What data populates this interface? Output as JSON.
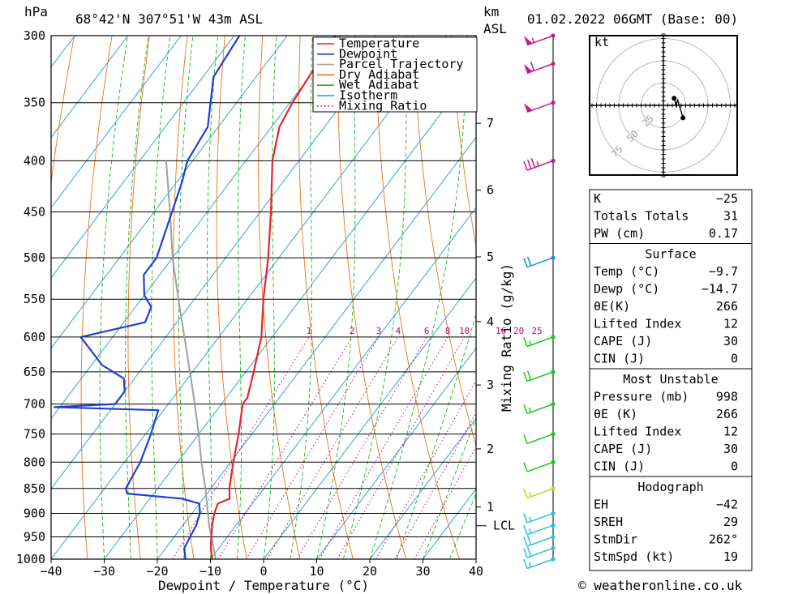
{
  "header": {
    "location": "68°42'N  307°51'W  43m  ASL",
    "datetime": "01.02.2022  06GMT  (Base: 00)",
    "hpa_label": "hPa",
    "km_label": "km",
    "asl_label": "ASL",
    "mixing_ratio_axis": "Mixing Ratio (g/kg)",
    "footer": "© weatheronline.co.uk"
  },
  "chart_data": {
    "type": "line",
    "xlabel": "Dewpoint / Temperature (°C)",
    "ylabel": "hPa",
    "x_ticks": [
      "−40",
      "−30",
      "−20",
      "−10",
      "0",
      "10",
      "20",
      "30",
      "40"
    ],
    "x_tick_values": [
      -40,
      -30,
      -20,
      -10,
      0,
      10,
      20,
      30,
      40
    ],
    "pressure_ticks": [
      300,
      350,
      400,
      450,
      500,
      550,
      600,
      650,
      700,
      750,
      800,
      850,
      900,
      950,
      1000
    ],
    "xlim": [
      -40,
      40
    ],
    "plim": [
      300,
      1000
    ],
    "skew": true,
    "km_ticks": [
      {
        "label": "7",
        "p": 367
      },
      {
        "label": "6",
        "p": 428
      },
      {
        "label": "5",
        "p": 499
      },
      {
        "label": "4",
        "p": 579
      },
      {
        "label": "3",
        "p": 670
      },
      {
        "label": "2",
        "p": 776
      },
      {
        "label": "1",
        "p": 887
      }
    ],
    "lcl": {
      "label": "LCL",
      "p": 926
    },
    "mixing_ratio_labels": [
      "1",
      "2",
      "3",
      "4",
      "6",
      "8",
      "10",
      "16",
      "20",
      "25"
    ],
    "mixing_ratio_values": [
      1,
      2,
      3,
      4,
      6,
      8,
      10,
      16,
      20,
      25
    ],
    "legend": {
      "position": "top-right",
      "entries": [
        {
          "name": "Temperature",
          "color": "#e8242c"
        },
        {
          "name": "Dewpoint",
          "color": "#1f3fd6"
        },
        {
          "name": "Parcel Trajectory",
          "color": "#a0a0a0"
        },
        {
          "name": "Dry Adiabat",
          "color": "#e8731a"
        },
        {
          "name": "Wet Adiabat",
          "color": "#18b818"
        },
        {
          "name": "Isotherm",
          "color": "#1a9ad6"
        },
        {
          "name": "Mixing Ratio",
          "color": "#c0007a"
        }
      ]
    },
    "series": [
      {
        "name": "Temperature",
        "color": "#e8242c",
        "points": [
          {
            "p": 1000,
            "t": -9.7
          },
          {
            "p": 975,
            "t": -11.5
          },
          {
            "p": 950,
            "t": -13.0
          },
          {
            "p": 925,
            "t": -14.5
          },
          {
            "p": 900,
            "t": -15.8
          },
          {
            "p": 880,
            "t": -16.5
          },
          {
            "p": 870,
            "t": -15.0
          },
          {
            "p": 850,
            "t": -16.5
          },
          {
            "p": 800,
            "t": -19.5
          },
          {
            "p": 750,
            "t": -22.5
          },
          {
            "p": 700,
            "t": -26.0
          },
          {
            "p": 690,
            "t": -26.0
          },
          {
            "p": 650,
            "t": -28.5
          },
          {
            "p": 600,
            "t": -32.0
          },
          {
            "p": 550,
            "t": -37.0
          },
          {
            "p": 500,
            "t": -42.0
          },
          {
            "p": 450,
            "t": -48.0
          },
          {
            "p": 400,
            "t": -55.0
          },
          {
            "p": 370,
            "t": -58.5
          },
          {
            "p": 350,
            "t": -59.5
          },
          {
            "p": 300,
            "t": -61.0
          }
        ]
      },
      {
        "name": "Dewpoint",
        "color": "#1f3fd6",
        "points": [
          {
            "p": 1000,
            "t": -14.7
          },
          {
            "p": 975,
            "t": -16.5
          },
          {
            "p": 950,
            "t": -17.0
          },
          {
            "p": 925,
            "t": -17.5
          },
          {
            "p": 900,
            "t": -18.5
          },
          {
            "p": 880,
            "t": -20.0
          },
          {
            "p": 870,
            "t": -24.0
          },
          {
            "p": 860,
            "t": -35.0
          },
          {
            "p": 850,
            "t": -36.0
          },
          {
            "p": 800,
            "t": -37.0
          },
          {
            "p": 750,
            "t": -39.0
          },
          {
            "p": 710,
            "t": -41.0
          },
          {
            "p": 705,
            "t": -61.0
          },
          {
            "p": 700,
            "t": -50.0
          },
          {
            "p": 680,
            "t": -50.0
          },
          {
            "p": 660,
            "t": -52.0
          },
          {
            "p": 640,
            "t": -58.0
          },
          {
            "p": 600,
            "t": -66.0
          },
          {
            "p": 580,
            "t": -56.0
          },
          {
            "p": 560,
            "t": -57.0
          },
          {
            "p": 545,
            "t": -60.0
          },
          {
            "p": 520,
            "t": -63.0
          },
          {
            "p": 500,
            "t": -63.0
          },
          {
            "p": 420,
            "t": -69.0
          },
          {
            "p": 400,
            "t": -71.0
          },
          {
            "p": 370,
            "t": -72.0
          },
          {
            "p": 330,
            "t": -78.0
          },
          {
            "p": 300,
            "t": -79.0
          }
        ]
      },
      {
        "name": "Parcel Trajectory",
        "color": "#a0a0a0",
        "points": [
          {
            "p": 1000,
            "t": -9.0
          },
          {
            "p": 926,
            "t": -15.0
          },
          {
            "p": 850,
            "t": -21.0
          },
          {
            "p": 800,
            "t": -25.5
          },
          {
            "p": 750,
            "t": -30.0
          },
          {
            "p": 700,
            "t": -35.0
          },
          {
            "p": 650,
            "t": -40.5
          },
          {
            "p": 600,
            "t": -46.5
          },
          {
            "p": 550,
            "t": -53.0
          },
          {
            "p": 500,
            "t": -60.0
          },
          {
            "p": 450,
            "t": -67.0
          },
          {
            "p": 400,
            "t": -75.0
          }
        ]
      }
    ],
    "wind_barbs": [
      {
        "p": 1000,
        "speed_kt": 19,
        "color": "#28c0d8"
      },
      {
        "p": 975,
        "speed_kt": 20,
        "color": "#28c0d8"
      },
      {
        "p": 950,
        "speed_kt": 20,
        "color": "#28c0d8"
      },
      {
        "p": 925,
        "speed_kt": 15,
        "color": "#28c0d8"
      },
      {
        "p": 900,
        "speed_kt": 15,
        "color": "#28c0d8"
      },
      {
        "p": 850,
        "speed_kt": 15,
        "color": "#b8d818"
      },
      {
        "p": 800,
        "speed_kt": 10,
        "color": "#18c818"
      },
      {
        "p": 750,
        "speed_kt": 10,
        "color": "#18c818"
      },
      {
        "p": 700,
        "speed_kt": 15,
        "color": "#18c818"
      },
      {
        "p": 650,
        "speed_kt": 20,
        "color": "#18c818"
      },
      {
        "p": 600,
        "speed_kt": 15,
        "color": "#18c818"
      },
      {
        "p": 500,
        "speed_kt": 20,
        "color": "#1a8ad6"
      },
      {
        "p": 400,
        "speed_kt": 35,
        "color": "#c8188a"
      },
      {
        "p": 350,
        "speed_kt": 50,
        "color": "#c8188a"
      },
      {
        "p": 320,
        "speed_kt": 60,
        "color": "#c8188a"
      },
      {
        "p": 300,
        "speed_kt": 55,
        "color": "#c8188a"
      }
    ]
  },
  "hodograph": {
    "unit_label": "kt",
    "rings": [
      "25",
      "50",
      "75"
    ],
    "ring_values": [
      25,
      50,
      75
    ],
    "trace_points": [
      [
        12,
        8
      ],
      [
        13,
        5
      ],
      [
        14,
        0
      ],
      [
        16,
        6
      ],
      [
        22,
        -14
      ]
    ]
  },
  "table": {
    "indices": [
      {
        "label": "K",
        "value": "−25"
      },
      {
        "label": "Totals Totals",
        "value": "31"
      },
      {
        "label": "PW (cm)",
        "value": "0.17"
      }
    ],
    "surface": {
      "title": "Surface",
      "rows": [
        {
          "label": "Temp (°C)",
          "value": "−9.7"
        },
        {
          "label": "Dewp (°C)",
          "value": "−14.7"
        },
        {
          "label": "θE(K)",
          "value": "266"
        },
        {
          "label": "Lifted Index",
          "value": "12"
        },
        {
          "label": "CAPE (J)",
          "value": "30"
        },
        {
          "label": "CIN (J)",
          "value": "0"
        }
      ]
    },
    "most_unstable": {
      "title": "Most Unstable",
      "rows": [
        {
          "label": "Pressure (mb)",
          "value": "998"
        },
        {
          "label": "θE (K)",
          "value": "266"
        },
        {
          "label": "Lifted Index",
          "value": "12"
        },
        {
          "label": "CAPE (J)",
          "value": "30"
        },
        {
          "label": "CIN (J)",
          "value": "0"
        }
      ]
    },
    "hodograph_section": {
      "title": "Hodograph",
      "rows": [
        {
          "label": "EH",
          "value": "−42"
        },
        {
          "label": "SREH",
          "value": "29"
        },
        {
          "label": "StmDir",
          "value": "262°"
        },
        {
          "label": "StmSpd (kt)",
          "value": "19"
        }
      ]
    }
  }
}
